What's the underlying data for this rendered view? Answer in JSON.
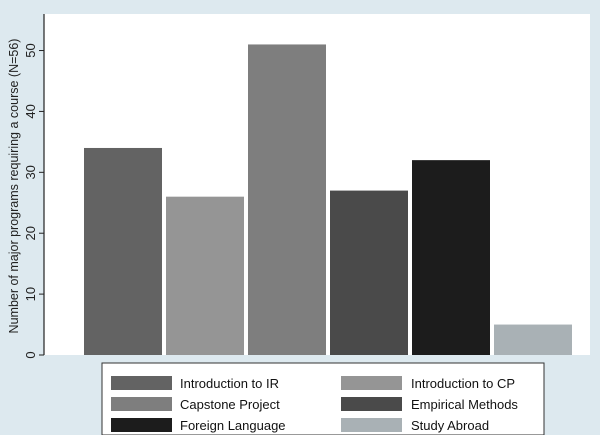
{
  "chart_data": {
    "type": "bar",
    "title": "",
    "xlabel": "",
    "ylabel": "Number of major programs requiring a course (N=56)",
    "ylim": [
      0,
      56
    ],
    "yticks": [
      0,
      10,
      20,
      30,
      40,
      50
    ],
    "grid": false,
    "legend_position": "bottom",
    "series": [
      {
        "name": "Introduction to IR",
        "value": 34,
        "color": "#636363"
      },
      {
        "name": "Introduction to CP",
        "value": 26,
        "color": "#959595"
      },
      {
        "name": "Capstone Project",
        "value": 51,
        "color": "#7e7e7e"
      },
      {
        "name": "Empirical Methods",
        "value": 27,
        "color": "#4a4a4a"
      },
      {
        "name": "Foreign Language",
        "value": 32,
        "color": "#1c1c1c"
      },
      {
        "name": "Study Abroad",
        "value": 5,
        "color": "#a9b1b5"
      }
    ]
  },
  "colors": {
    "background": "#dde9ef",
    "plot_area": "#ffffff",
    "axis": "#222222"
  }
}
